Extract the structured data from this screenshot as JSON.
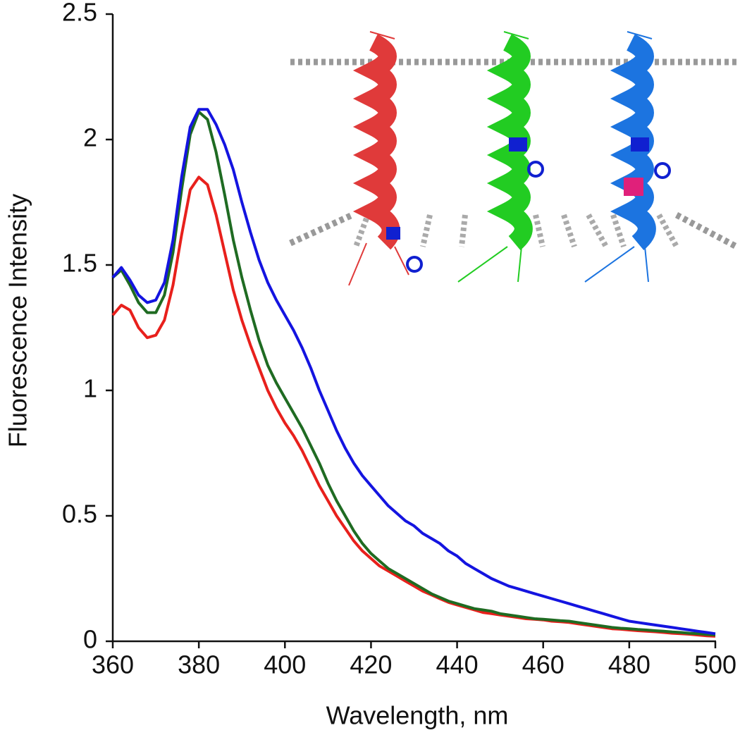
{
  "chart_data": {
    "type": "line",
    "xlabel": "Wavelength, nm",
    "ylabel": "Fluorescence Intensity",
    "x": [
      360,
      362,
      364,
      366,
      368,
      370,
      372,
      374,
      376,
      378,
      380,
      382,
      384,
      386,
      388,
      390,
      392,
      394,
      396,
      398,
      400,
      402,
      404,
      406,
      408,
      410,
      412,
      414,
      416,
      418,
      420,
      422,
      424,
      426,
      428,
      430,
      432,
      434,
      436,
      438,
      440,
      442,
      444,
      446,
      448,
      450,
      452,
      454,
      456,
      458,
      460,
      462,
      464,
      466,
      468,
      470,
      472,
      474,
      476,
      478,
      480,
      482,
      484,
      486,
      488,
      490,
      492,
      494,
      496,
      498,
      500
    ],
    "series": [
      {
        "color": "#e8201c",
        "values": [
          1.3,
          1.34,
          1.32,
          1.25,
          1.21,
          1.22,
          1.28,
          1.42,
          1.62,
          1.8,
          1.85,
          1.82,
          1.7,
          1.55,
          1.4,
          1.28,
          1.18,
          1.09,
          1.0,
          0.93,
          0.87,
          0.82,
          0.76,
          0.69,
          0.62,
          0.56,
          0.5,
          0.45,
          0.4,
          0.36,
          0.33,
          0.3,
          0.28,
          0.26,
          0.24,
          0.22,
          0.2,
          0.185,
          0.17,
          0.155,
          0.145,
          0.135,
          0.125,
          0.115,
          0.11,
          0.105,
          0.1,
          0.095,
          0.09,
          0.088,
          0.085,
          0.08,
          0.078,
          0.075,
          0.07,
          0.065,
          0.06,
          0.055,
          0.05,
          0.048,
          0.045,
          0.042,
          0.04,
          0.038,
          0.035,
          0.032,
          0.03,
          0.028,
          0.025,
          0.022,
          0.02
        ]
      },
      {
        "color": "#1f6b22",
        "values": [
          1.45,
          1.48,
          1.42,
          1.35,
          1.31,
          1.31,
          1.38,
          1.55,
          1.8,
          2.02,
          2.11,
          2.08,
          1.95,
          1.78,
          1.6,
          1.45,
          1.32,
          1.2,
          1.1,
          1.03,
          0.97,
          0.91,
          0.85,
          0.78,
          0.71,
          0.63,
          0.56,
          0.5,
          0.44,
          0.39,
          0.35,
          0.32,
          0.29,
          0.27,
          0.25,
          0.23,
          0.21,
          0.19,
          0.175,
          0.16,
          0.15,
          0.14,
          0.13,
          0.125,
          0.12,
          0.11,
          0.105,
          0.1,
          0.095,
          0.09,
          0.088,
          0.085,
          0.082,
          0.08,
          0.075,
          0.07,
          0.065,
          0.06,
          0.055,
          0.052,
          0.05,
          0.047,
          0.045,
          0.042,
          0.04,
          0.037,
          0.035,
          0.032,
          0.03,
          0.027,
          0.025
        ]
      },
      {
        "color": "#1414e0",
        "values": [
          1.45,
          1.49,
          1.44,
          1.38,
          1.35,
          1.36,
          1.43,
          1.6,
          1.85,
          2.05,
          2.12,
          2.12,
          2.06,
          1.98,
          1.88,
          1.75,
          1.63,
          1.52,
          1.43,
          1.36,
          1.3,
          1.24,
          1.17,
          1.09,
          1.0,
          0.92,
          0.84,
          0.77,
          0.71,
          0.66,
          0.62,
          0.58,
          0.54,
          0.51,
          0.48,
          0.46,
          0.43,
          0.41,
          0.39,
          0.36,
          0.34,
          0.31,
          0.29,
          0.27,
          0.25,
          0.235,
          0.22,
          0.21,
          0.2,
          0.19,
          0.18,
          0.17,
          0.16,
          0.15,
          0.14,
          0.13,
          0.12,
          0.11,
          0.1,
          0.09,
          0.08,
          0.075,
          0.07,
          0.065,
          0.06,
          0.055,
          0.05,
          0.045,
          0.04,
          0.035,
          0.03
        ]
      }
    ],
    "xlim": [
      360,
      500
    ],
    "xticks": [
      360,
      380,
      400,
      420,
      440,
      460,
      480,
      500
    ],
    "ylim": [
      0,
      2.5
    ],
    "yticks": [
      0,
      0.5,
      1,
      1.5,
      2,
      2.5
    ],
    "grid": false
  }
}
